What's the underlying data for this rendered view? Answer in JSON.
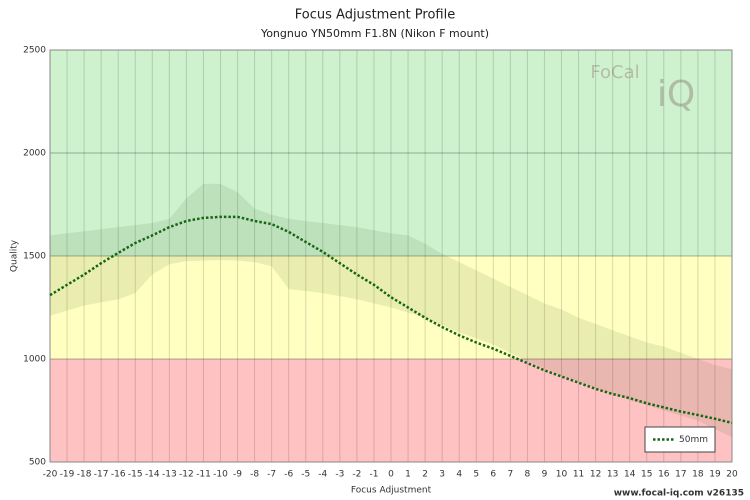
{
  "chart_data": {
    "type": "line",
    "title": "Focus Adjustment Profile",
    "subtitle": "Yongnuo YN50mm F1.8N (Nikon F mount)",
    "x_label": "Focus Adjustment",
    "y_label": "Quality",
    "footer": "www.focal-iq.com  v26135",
    "logo": [
      "FoCal",
      "iQ"
    ],
    "x": [
      -20,
      -19,
      -18,
      -17,
      -16,
      -15,
      -14,
      -13,
      -12,
      -11,
      -10,
      -9,
      -8,
      -7,
      -6,
      -5,
      -4,
      -3,
      -2,
      -1,
      0,
      1,
      2,
      3,
      4,
      5,
      6,
      7,
      8,
      9,
      10,
      11,
      12,
      13,
      14,
      15,
      16,
      17,
      18,
      19,
      20
    ],
    "xlim": [
      -20,
      20
    ],
    "xticks": [
      -20,
      -19,
      -18,
      -17,
      -16,
      -15,
      -14,
      -13,
      -12,
      -11,
      -10,
      -9,
      -8,
      -7,
      -6,
      -5,
      -4,
      -3,
      -2,
      -1,
      0,
      1,
      2,
      3,
      4,
      5,
      6,
      7,
      8,
      9,
      10,
      11,
      12,
      13,
      14,
      15,
      16,
      17,
      18,
      19,
      20
    ],
    "ylim": [
      500,
      2500
    ],
    "yticks": [
      500,
      1000,
      1500,
      2000,
      2500
    ],
    "zones": [
      {
        "from": 1500,
        "to": 2500,
        "color": "#cdf2cd"
      },
      {
        "from": 1000,
        "to": 1500,
        "color": "#ffffc2"
      },
      {
        "from": 500,
        "to": 1000,
        "color": "#ffc2c2"
      }
    ],
    "ranges": [
      {
        "color": "rgba(60,90,40,0.11)",
        "upper": [
          1600,
          1610,
          1620,
          1630,
          1640,
          1650,
          1660,
          1680,
          1780,
          1850,
          1850,
          1810,
          1730,
          1700,
          1680,
          1670,
          1660,
          1650,
          1640,
          1625,
          1610,
          1600,
          1560,
          1510,
          1470,
          1430,
          1390,
          1350,
          1310,
          1270,
          1240,
          1200,
          1170,
          1140,
          1110,
          1080,
          1060,
          1030,
          1000,
          970,
          950
        ],
        "lower": [
          1210,
          1235,
          1260,
          1275,
          1290,
          1320,
          1410,
          1460,
          1475,
          1478,
          1480,
          1478,
          1470,
          1450,
          1340,
          1330,
          1320,
          1305,
          1290,
          1270,
          1250,
          1225,
          1200,
          1165,
          1130,
          1100,
          1070,
          1030,
          990,
          955,
          920,
          890,
          860,
          830,
          800,
          775,
          750,
          725,
          700,
          660,
          620
        ]
      }
    ],
    "series": [
      {
        "name": "50mm",
        "color": "#156615",
        "values": [
          1310,
          1360,
          1410,
          1465,
          1515,
          1563,
          1600,
          1640,
          1670,
          1685,
          1690,
          1690,
          1670,
          1655,
          1617,
          1568,
          1520,
          1465,
          1410,
          1360,
          1300,
          1250,
          1200,
          1155,
          1115,
          1080,
          1050,
          1015,
          980,
          945,
          915,
          885,
          855,
          830,
          810,
          785,
          765,
          745,
          728,
          710,
          690
        ]
      }
    ],
    "legend": "bottom-right",
    "grid": true
  }
}
